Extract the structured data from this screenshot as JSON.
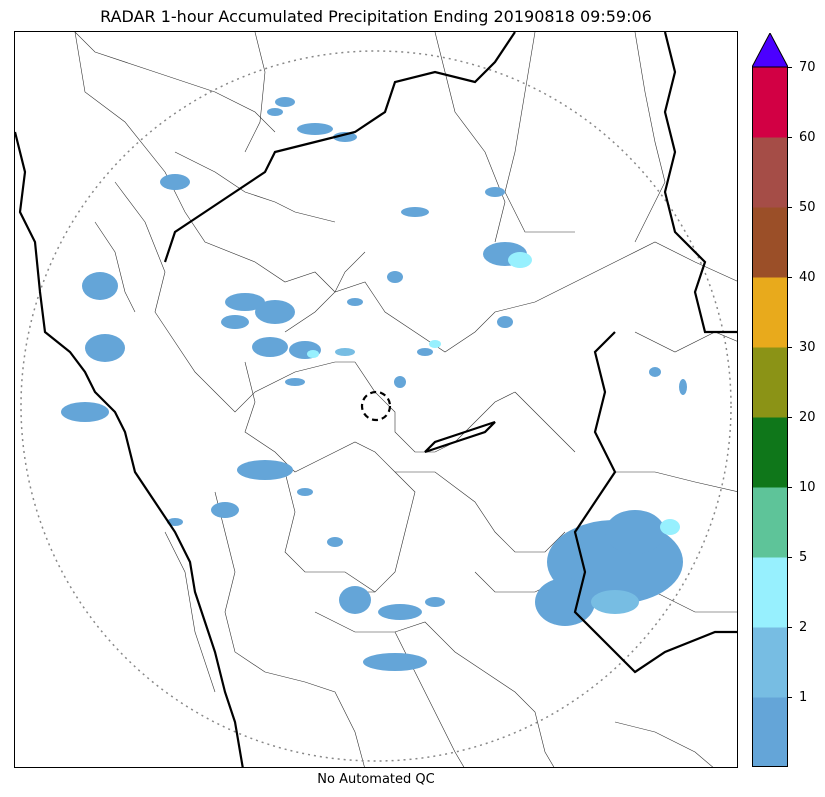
{
  "title": "RADAR 1-hour Accumulated Precipitation Ending 20190818 09:59:06",
  "footer_note": "No Automated QC",
  "colorbar": {
    "ticks": [
      "1",
      "2",
      "5",
      "10",
      "20",
      "30",
      "40",
      "50",
      "60",
      "70"
    ],
    "bins": [
      {
        "color": "#64a5d8"
      },
      {
        "color": "#77bde3"
      },
      {
        "color": "#97f0fe"
      },
      {
        "color": "#5ec499"
      },
      {
        "color": "#0f771a"
      },
      {
        "color": "#8b9316"
      },
      {
        "color": "#e8aa1c"
      },
      {
        "color": "#9b4f28"
      },
      {
        "color": "#a54d47"
      },
      {
        "color": "#d20044"
      }
    ],
    "extend_color": "#4b00ff"
  }
}
